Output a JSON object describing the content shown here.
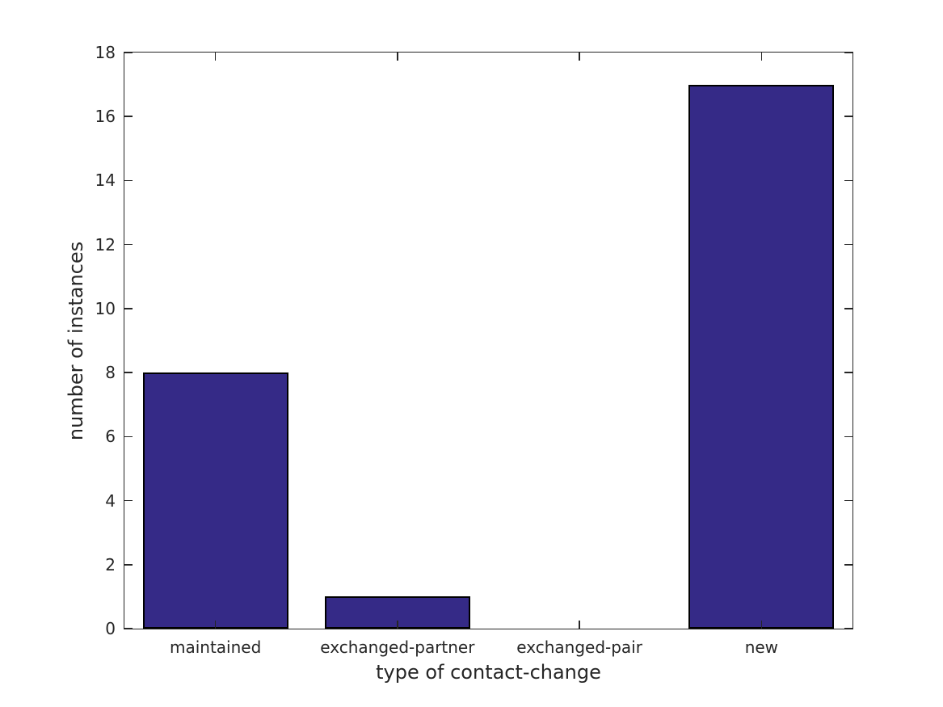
{
  "chart_data": {
    "type": "bar",
    "title": "",
    "categories": [
      "maintained",
      "exchanged-partner",
      "exchanged-pair",
      "new"
    ],
    "values": [
      8,
      1,
      0,
      17
    ],
    "xlabel": "type of contact-change",
    "ylabel": "number of instances",
    "ylim": [
      0,
      18
    ],
    "yticks": [
      0,
      2,
      4,
      6,
      8,
      10,
      12,
      14,
      16,
      18
    ],
    "ytick_labels": [
      "0",
      "2",
      "4",
      "6",
      "8",
      "10",
      "12",
      "14",
      "16",
      "18"
    ],
    "bar_width_fraction": 0.8,
    "grid": false,
    "box": true,
    "tick_direction": "in",
    "legend": null,
    "colors": {
      "bar_fill": "#352A87",
      "bar_edge": "#000000",
      "axis": "#262626",
      "text": "#262626",
      "background": "#FFFFFF"
    }
  }
}
